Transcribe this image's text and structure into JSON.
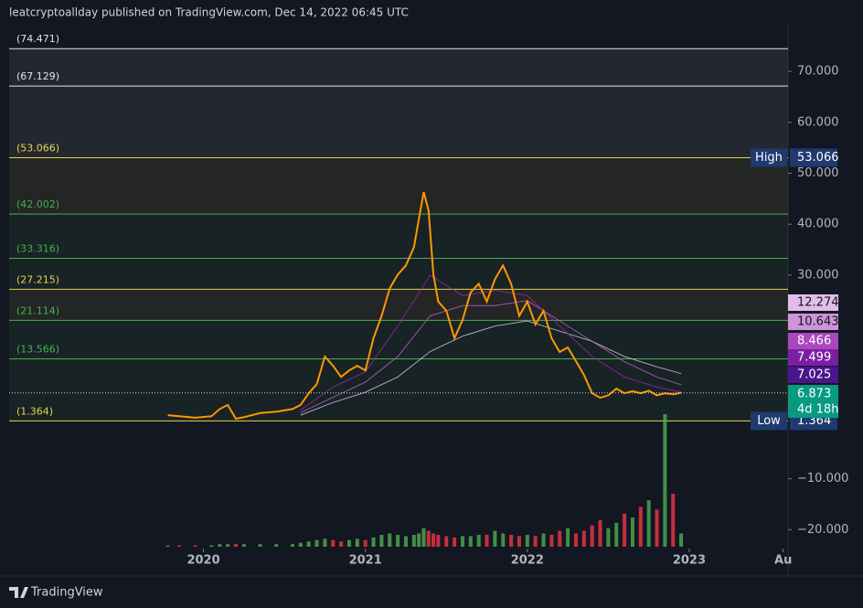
{
  "header": "leatcryptoallday published on TradingView.com, Dec 14, 2022 06:45 UTC",
  "brand": "TradingView",
  "chart_data": {
    "type": "line",
    "xlim": [
      2018.8,
      2023.61
    ],
    "xticks": [
      2020,
      2021,
      2022,
      2023,
      {
        "value": 2023.58,
        "label": "Au"
      }
    ],
    "ylim": [
      -23.7,
      79.0
    ],
    "yticks": [
      {
        "value": 70,
        "label": "70.000"
      },
      {
        "value": 60,
        "label": "60.000"
      },
      {
        "value": 50,
        "label": "50.000"
      },
      {
        "value": 40,
        "label": "40.000"
      },
      {
        "value": 30,
        "label": "30.000"
      },
      {
        "value": -10,
        "label": "−10.000"
      },
      {
        "value": -20,
        "label": "−20.000"
      }
    ],
    "fib_levels": [
      {
        "value": 74.471,
        "label": "(74.471)",
        "color": "#e0e3eb"
      },
      {
        "value": 67.129,
        "label": "(67.129)",
        "color": "#e0e3eb"
      },
      {
        "value": 53.066,
        "label": "(53.066)",
        "color": "#e8d44d"
      },
      {
        "value": 42.002,
        "label": "(42.002)",
        "color": "#4caf50"
      },
      {
        "value": 33.316,
        "label": "(33.316)",
        "color": "#4caf50"
      },
      {
        "value": 27.215,
        "label": "(27.215)",
        "color": "#e8d44d"
      },
      {
        "value": 21.114,
        "label": "(21.114)",
        "color": "#4caf50"
      },
      {
        "value": 13.566,
        "label": "(13.566)",
        "color": "#4caf50"
      },
      {
        "value": 1.364,
        "label": "(1.364)",
        "color": "#e8d44d"
      }
    ],
    "series": [
      {
        "color": "#ff9800",
        "x": [
          2019.78,
          2019.85,
          2019.95,
          2020.05,
          2020.1,
          2020.15,
          2020.2,
          2020.25,
          2020.35,
          2020.45,
          2020.55,
          2020.6,
          2020.65,
          2020.7,
          2020.75,
          2020.8,
          2020.85,
          2020.9,
          2020.95,
          2021.0,
          2021.05,
          2021.1,
          2021.15,
          2021.2,
          2021.25,
          2021.3,
          2021.33,
          2021.36,
          2021.39,
          2021.42,
          2021.45,
          2021.5,
          2021.55,
          2021.6,
          2021.65,
          2021.7,
          2021.75,
          2021.8,
          2021.85,
          2021.9,
          2021.95,
          2022.0,
          2022.05,
          2022.1,
          2022.15,
          2022.2,
          2022.25,
          2022.3,
          2022.35,
          2022.4,
          2022.45,
          2022.5,
          2022.55,
          2022.6,
          2022.65,
          2022.7,
          2022.75,
          2022.8,
          2022.85,
          2022.9,
          2022.95
        ],
        "values": [
          2.5,
          2.3,
          2.0,
          2.3,
          3.7,
          4.5,
          1.8,
          2.1,
          2.9,
          3.2,
          3.7,
          4.5,
          6.8,
          8.6,
          14,
          12.2,
          10,
          11.3,
          12.2,
          11.3,
          17.6,
          22,
          27.4,
          30.1,
          31.9,
          35.5,
          40.9,
          46.3,
          42.7,
          30.1,
          24.8,
          23,
          17.6,
          21.2,
          26.6,
          28.3,
          24.8,
          29.2,
          31.9,
          28.3,
          22,
          24.8,
          20.3,
          23,
          17.6,
          14.9,
          15.8,
          13.1,
          10.4,
          6.8,
          5.9,
          6.4,
          7.7,
          6.8,
          7.2,
          6.8,
          7.3,
          6.4,
          6.8,
          6.6,
          6.873
        ]
      },
      {
        "color": "#9c27b0",
        "x": [
          2020.6,
          2020.8,
          2021.0,
          2021.2,
          2021.4,
          2021.6,
          2021.8,
          2022.0,
          2022.2,
          2022.4,
          2022.6,
          2022.8,
          2022.95
        ],
        "values": [
          3.5,
          8,
          11,
          20,
          30,
          26,
          27,
          26,
          20,
          14,
          10,
          8,
          7.025
        ]
      },
      {
        "color": "#ba68c8",
        "x": [
          2020.6,
          2020.8,
          2021.0,
          2021.2,
          2021.4,
          2021.6,
          2021.8,
          2022.0,
          2022.2,
          2022.4,
          2022.6,
          2022.8,
          2022.95
        ],
        "values": [
          3,
          6,
          9,
          14,
          22,
          24,
          24,
          25,
          21,
          17,
          13,
          10,
          8.466
        ]
      },
      {
        "color": "#e1bee7",
        "x": [
          2020.6,
          2020.8,
          2021.0,
          2021.2,
          2021.4,
          2021.6,
          2021.8,
          2022.0,
          2022.2,
          2022.4,
          2022.6,
          2022.8,
          2022.95
        ],
        "values": [
          2.5,
          5,
          7,
          10,
          15,
          18,
          20,
          21,
          19,
          17,
          14,
          12,
          10.643
        ]
      }
    ],
    "high": {
      "label": "High",
      "value": 53.066,
      "color": "#1e3a6e"
    },
    "low": {
      "label": "Low",
      "value": 1.364,
      "color": "#1e3a6e"
    },
    "price_labels": [
      {
        "value": 12.274,
        "color": "#e1bee7",
        "text_color": "#131722"
      },
      {
        "value": 10.643,
        "color": "#ce93d8",
        "text_color": "#131722"
      },
      {
        "value": 8.466,
        "color": "#ab47bc",
        "text_color": "#ffffff"
      },
      {
        "value": 7.499,
        "color": "#7b1fa2",
        "text_color": "#ffffff"
      },
      {
        "value": 7.025,
        "color": "#4a148c",
        "text_color": "#ffffff"
      }
    ],
    "last_price": {
      "value": 6.873,
      "countdown": "4d 18h",
      "color": "#089981"
    },
    "volume": {
      "vlim": [
        0,
        100
      ],
      "up_color": "#4caf50",
      "down_color": "#f23645",
      "values": [
        1,
        1,
        1,
        1,
        2,
        2,
        2,
        2,
        2,
        2,
        2,
        3,
        4,
        5,
        6,
        5,
        4,
        5,
        6,
        5,
        7,
        9,
        10,
        9,
        8,
        9,
        10,
        14,
        12,
        10,
        9,
        8,
        7,
        8,
        8,
        9,
        9,
        12,
        10,
        9,
        8,
        9,
        8,
        10,
        9,
        12,
        14,
        10,
        12,
        16,
        20,
        14,
        18,
        25,
        22,
        30,
        35,
        28,
        100,
        40,
        10
      ]
    }
  }
}
